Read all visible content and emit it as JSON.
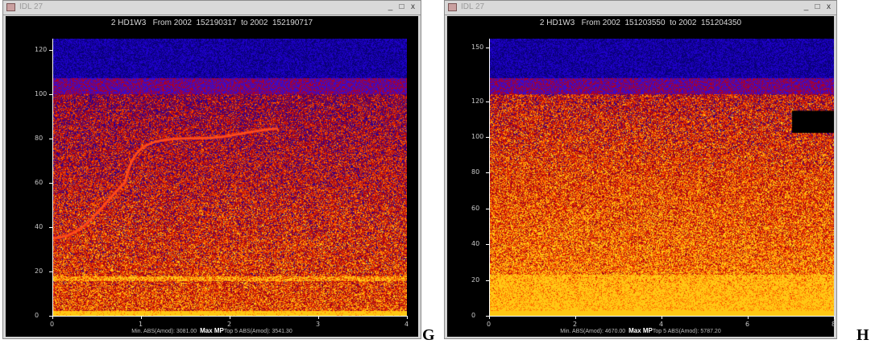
{
  "panels": [
    {
      "id": "g",
      "window_title": "IDL 27",
      "controls": {
        "minimize": "_",
        "maximize": "□",
        "close": "x"
      },
      "plot_title": "2 HD1W3   From 2002  152190317  to 2002  152190717",
      "footer": {
        "left": "Min. ABS(Amod): 3081.00",
        "mid": "Max MP",
        "right": "Top 5 ABS(Amod): 3541.30"
      },
      "letter": "G",
      "chart_data": {
        "type": "heatmap",
        "title": "2 HD1W3   From 2002  152190317  to 2002  152190717",
        "xlim": [
          0,
          4
        ],
        "ylim": [
          0,
          125
        ],
        "x_ticks": [
          "0",
          "1",
          "2",
          "3",
          "4"
        ],
        "y_ticks": [
          "0",
          "20",
          "40",
          "60",
          "80",
          "100",
          "120"
        ],
        "colormap": [
          "#000000",
          "#2a00c8",
          "#5a10b0",
          "#b01010",
          "#e02000",
          "#ff7000",
          "#ffc800"
        ]
      }
    },
    {
      "id": "h",
      "window_title": "IDL 27",
      "controls": {
        "minimize": "_",
        "maximize": "□",
        "close": "x"
      },
      "plot_title": "2 HD1W3   From 2002  151203550  to 2002  151204350",
      "footer": {
        "left": "Min. ABS(Amod): 4670.00",
        "mid": "Max MP",
        "right": "Top 5 ABS(Amod): 5787.20"
      },
      "letter": "H",
      "chart_data": {
        "type": "heatmap",
        "title": "2 HD1W3   From 2002  151203550  to 2002  151204350",
        "xlim": [
          0,
          8
        ],
        "ylim": [
          0,
          155
        ],
        "x_ticks": [
          "0",
          "2",
          "4",
          "6",
          "8"
        ],
        "y_ticks": [
          "0",
          "20",
          "40",
          "60",
          "80",
          "100",
          "120",
          "150"
        ],
        "colormap": [
          "#000000",
          "#2a00c8",
          "#5a10b0",
          "#b01010",
          "#e02000",
          "#ff7000",
          "#ffc800"
        ]
      }
    }
  ]
}
